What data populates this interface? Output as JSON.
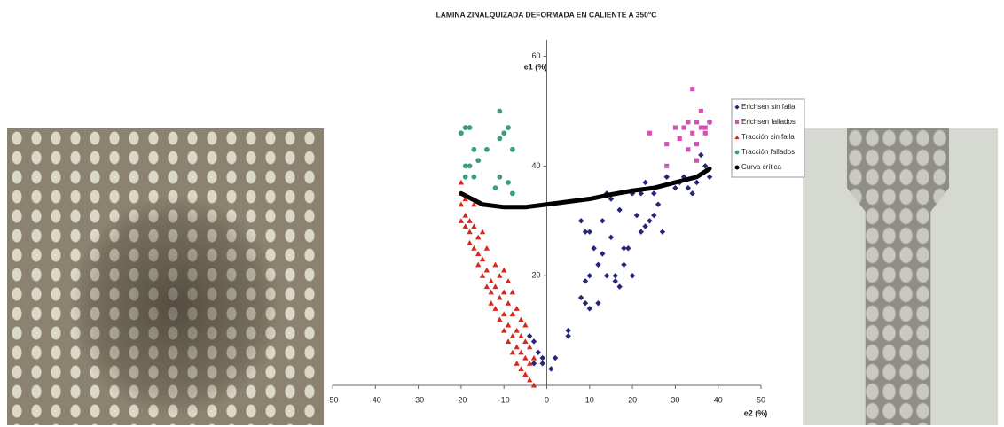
{
  "chart_data": {
    "type": "scatter",
    "title": "LAMINA ZINALQUIZADA DEFORMADA EN CALIENTE A 350°C",
    "x_label": "e2 (%)",
    "y_label": "e1 (%)",
    "xlim": [
      -50,
      50
    ],
    "xticks": [
      -50,
      -40,
      -30,
      -20,
      -10,
      0,
      10,
      20,
      30,
      40,
      50
    ],
    "ylim": [
      0,
      63
    ],
    "yticks": [
      20,
      40,
      60
    ],
    "legend": "right",
    "series": [
      {
        "name": "Erichsen sin falla",
        "color": "#26267a",
        "marker": "diamond",
        "x": [
          -4,
          -3,
          -2,
          -1,
          -1,
          -3,
          1,
          2,
          5,
          5,
          8,
          8,
          9,
          9,
          9,
          10,
          10,
          10,
          11,
          12,
          12,
          13,
          13,
          14,
          14,
          15,
          15,
          16,
          16,
          17,
          17,
          18,
          18,
          19,
          20,
          20,
          21,
          22,
          22,
          23,
          23,
          24,
          25,
          25,
          26,
          27,
          28,
          30,
          31,
          32,
          33,
          34,
          35,
          36,
          37,
          38,
          38
        ],
        "values": [
          9,
          8,
          6,
          4,
          5,
          4,
          3,
          5,
          10,
          9,
          16,
          30,
          28,
          15,
          19,
          20,
          28,
          14,
          25,
          15,
          22,
          24,
          30,
          35,
          20,
          34,
          27,
          20,
          19,
          18,
          32,
          25,
          22,
          25,
          20,
          35,
          31,
          28,
          35,
          29,
          37,
          30,
          31,
          35,
          33,
          28,
          38,
          36,
          37,
          38,
          36,
          35,
          37,
          42,
          40,
          38,
          48
        ]
      },
      {
        "name": "Erichsen fallados",
        "color": "#d64fb4",
        "marker": "square",
        "x": [
          24,
          28,
          28,
          30,
          31,
          32,
          33,
          33,
          34,
          34,
          35,
          35,
          36,
          36,
          37,
          37,
          38,
          35
        ],
        "values": [
          46,
          40,
          44,
          47,
          45,
          47,
          43,
          48,
          46,
          54,
          48,
          44,
          47,
          50,
          46,
          47,
          48,
          41
        ]
      },
      {
        "name": "Tracción sin falla",
        "color": "#d9261c",
        "marker": "triangle",
        "x": [
          -20,
          -20,
          -20,
          -20,
          -19,
          -19,
          -19,
          -18,
          -18,
          -18,
          -17,
          -17,
          -17,
          -16,
          -16,
          -16,
          -15,
          -15,
          -15,
          -14,
          -14,
          -14,
          -13,
          -13,
          -13,
          -12,
          -12,
          -12,
          -11,
          -11,
          -11,
          -10,
          -10,
          -10,
          -10,
          -9,
          -9,
          -9,
          -9,
          -8,
          -8,
          -8,
          -8,
          -7,
          -7,
          -7,
          -7,
          -6,
          -6,
          -6,
          -6,
          -5,
          -5,
          -5,
          -5,
          -4,
          -4,
          -4,
          -3,
          -3
        ],
        "values": [
          37,
          35,
          33,
          30,
          34,
          31,
          29,
          30,
          28,
          26,
          33,
          29,
          25,
          27,
          24,
          22,
          28,
          23,
          20,
          25,
          21,
          18,
          19,
          17,
          15,
          22,
          18,
          14,
          20,
          16,
          12,
          21,
          17,
          13,
          10,
          19,
          15,
          11,
          8,
          17,
          13,
          9,
          6,
          14,
          10,
          7,
          4,
          12,
          9,
          6,
          3,
          11,
          8,
          5,
          2,
          7,
          4,
          1,
          5,
          0
        ]
      },
      {
        "name": "Tracción fallados",
        "color": "#3a9f78",
        "marker": "circle",
        "x": [
          -20,
          -19,
          -18,
          -19,
          -18,
          -19,
          -17,
          -17,
          -14,
          -11,
          -11,
          -10,
          -9,
          -11,
          -9,
          -8,
          -8,
          -16,
          -12
        ],
        "values": [
          46,
          47,
          47,
          40,
          40,
          38,
          38,
          43,
          43,
          50,
          45,
          46,
          47,
          38,
          37,
          35,
          43,
          41,
          36
        ]
      },
      {
        "name": "Curva crítica",
        "color": "#000000",
        "marker": "line",
        "x": [
          -20,
          -15,
          -10,
          -5,
          0,
          5,
          10,
          15,
          20,
          25,
          30,
          35,
          38
        ],
        "values": [
          35,
          33,
          32.5,
          32.5,
          33,
          33.5,
          34,
          34.8,
          35.5,
          36,
          37,
          38,
          39.5
        ]
      }
    ]
  }
}
